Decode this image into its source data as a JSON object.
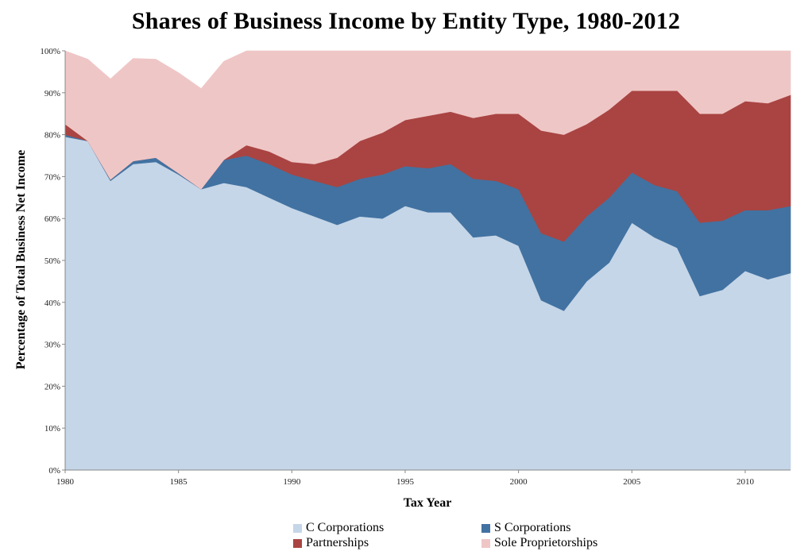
{
  "chart_data": {
    "type": "area",
    "stacked": true,
    "title": "Shares of Business Income by Entity Type, 1980-2012",
    "xlabel": "Tax Year",
    "ylabel": "Percentage of Total Business Net Income",
    "xlim": [
      1980,
      2012
    ],
    "ylim": [
      0,
      100
    ],
    "x_ticks": [
      1980,
      1985,
      1990,
      1995,
      2000,
      2005,
      2010
    ],
    "y_ticks": [
      "0%",
      "10%",
      "20%",
      "30%",
      "40%",
      "50%",
      "60%",
      "70%",
      "80%",
      "90%",
      "100%"
    ],
    "grid": false,
    "legend_position": "bottom",
    "x": [
      1980,
      1981,
      1982,
      1983,
      1984,
      1985,
      1986,
      1987,
      1988,
      1989,
      1990,
      1991,
      1992,
      1993,
      1994,
      1995,
      1996,
      1997,
      1998,
      1999,
      2000,
      2001,
      2002,
      2003,
      2004,
      2005,
      2006,
      2007,
      2008,
      2009,
      2010,
      2011,
      2012
    ],
    "series": [
      {
        "name": "C Corporations",
        "color": "#c5d6e8",
        "values": [
          79.5,
          78.5,
          69,
          73,
          73.5,
          70.5,
          67,
          68.5,
          67.5,
          65,
          62.5,
          60.5,
          58.5,
          60.5,
          60,
          63,
          61.5,
          61.5,
          55.5,
          56,
          53.5,
          40.5,
          38,
          45,
          49.5,
          59,
          55.5,
          53,
          41.5,
          43,
          47.5,
          45.5,
          47
        ]
      },
      {
        "name": "S Corporations",
        "color": "#4272a1",
        "values": [
          0.5,
          0,
          0.3,
          0.7,
          1,
          0.3,
          0,
          5.5,
          7.5,
          8,
          8,
          8.5,
          9,
          9,
          10.5,
          9.5,
          10.5,
          11.5,
          14,
          13,
          13.5,
          16,
          16.5,
          15.5,
          15.5,
          12,
          12.5,
          13.5,
          17.5,
          16.5,
          14.5,
          16.5,
          16
        ]
      },
      {
        "name": "Partnerships",
        "color": "#a94442",
        "values": [
          2.5,
          0,
          0,
          0,
          0,
          0,
          0,
          0,
          2.5,
          3,
          3,
          4,
          7,
          9,
          10,
          11,
          12.5,
          12.5,
          14.5,
          16,
          18,
          24.5,
          25.5,
          22,
          21,
          19.5,
          22.5,
          24,
          26,
          25.5,
          26,
          25.5,
          26.5
        ]
      },
      {
        "name": "Sole Proprietorships",
        "color": "#efc6c6",
        "values": [
          17.5,
          19.5,
          24,
          24.5,
          23.5,
          24,
          24,
          23.5,
          22.5,
          24,
          26.5,
          27,
          25.5,
          21.5,
          19.5,
          16.5,
          15.5,
          14.5,
          16,
          15,
          15,
          19,
          20,
          17.5,
          14,
          9.5,
          9.5,
          9.5,
          15,
          15,
          12,
          12.5,
          10.5
        ]
      }
    ]
  }
}
